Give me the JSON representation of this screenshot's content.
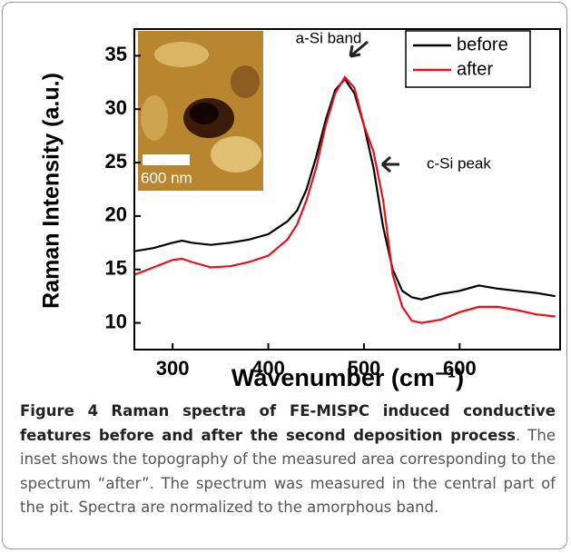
{
  "chart_data": {
    "type": "line",
    "xlabel": "Wavenumber (cm⁻¹)",
    "ylabel": "Raman Intensity (a.u.)",
    "x": [
      260,
      280,
      300,
      310,
      320,
      340,
      360,
      380,
      400,
      420,
      430,
      440,
      450,
      460,
      470,
      480,
      490,
      500,
      510,
      520,
      530,
      540,
      550,
      560,
      580,
      600,
      620,
      640,
      660,
      680,
      700
    ],
    "series": [
      {
        "name": "before",
        "color": "#000000",
        "values": [
          16.7,
          17.0,
          17.5,
          17.7,
          17.5,
          17.3,
          17.5,
          17.8,
          18.3,
          19.5,
          20.5,
          22.5,
          25.5,
          29,
          31.8,
          32.8,
          31.5,
          28.5,
          24.5,
          19,
          15,
          13,
          12.4,
          12.2,
          12.7,
          13,
          13.5,
          13.2,
          13,
          12.8,
          12.5
        ]
      },
      {
        "name": "after",
        "color": "#e8101a",
        "values": [
          14.5,
          15.2,
          15.9,
          16.0,
          15.7,
          15.2,
          15.3,
          15.7,
          16.3,
          17.8,
          19.2,
          21.5,
          24.5,
          28.5,
          31.5,
          33.0,
          32.0,
          28.5,
          26.0,
          21.5,
          14.5,
          11.5,
          10.2,
          10,
          10.3,
          11,
          11.5,
          11.5,
          11.2,
          10.8,
          10.6
        ]
      }
    ],
    "xlim": [
      260,
      705
    ],
    "xticks": [
      300,
      400,
      500,
      600
    ],
    "ylim": [
      7.5,
      37.5
    ],
    "yticks": [
      10,
      15,
      20,
      25,
      30,
      35
    ],
    "legend": "upper right",
    "annotations": [
      "a-Si band",
      "c-Si peak"
    ],
    "inset_label": "600 nm"
  },
  "caption": {
    "label": "Figure 4",
    "title": "Raman spectra of FE-MISPC induced conductive features before and after the second deposition process",
    "text": ". The inset shows the topography of the measured area corresponding to the spectrum “after”. The spectrum was measured in the central part of the pit. Spectra are normalized to the amorphous band."
  }
}
